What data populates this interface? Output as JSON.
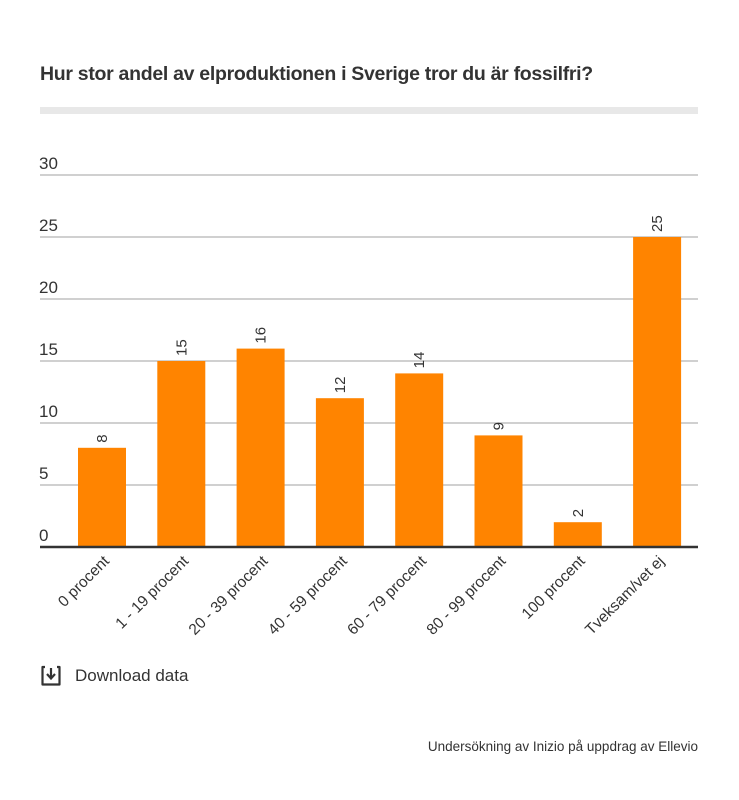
{
  "header": {
    "title": "Hur stor andel av elproduktionen i Sverige tror du är fossilfri?"
  },
  "chart_data": {
    "type": "bar",
    "title": "Hur stor andel av elproduktionen i Sverige tror du är fossilfri?",
    "xlabel": "",
    "ylabel": "",
    "categories": [
      "0 procent",
      "1 - 19 procent",
      "20 - 39 procent",
      "40 - 59 procent",
      "60 - 79 procent",
      "80 - 99 procent",
      "100 procent",
      "Tveksam/vet ej"
    ],
    "values": [
      8,
      15,
      16,
      12,
      14,
      9,
      2,
      25
    ],
    "data_labels": [
      "8",
      "15",
      "16",
      "12",
      "14",
      "9",
      "2",
      "25"
    ],
    "ylim": [
      0,
      30
    ],
    "yticks": [
      0,
      5,
      10,
      15,
      20,
      25,
      30
    ],
    "ytick_labels": [
      "0",
      "5",
      "10",
      "15",
      "20",
      "25",
      "30"
    ],
    "grid": true,
    "legend": "none",
    "bar_color": "#ff8400"
  },
  "footer": {
    "download_label": "Download data",
    "download_icon": "download-icon",
    "source": "Undersökning av Inizio på uppdrag av Ellevio"
  },
  "colors": {
    "bar": "#ff8400",
    "grid": "#b3b3b3",
    "axis": "#333333",
    "text": "#333333",
    "title_bar": "#e8e8e8"
  }
}
